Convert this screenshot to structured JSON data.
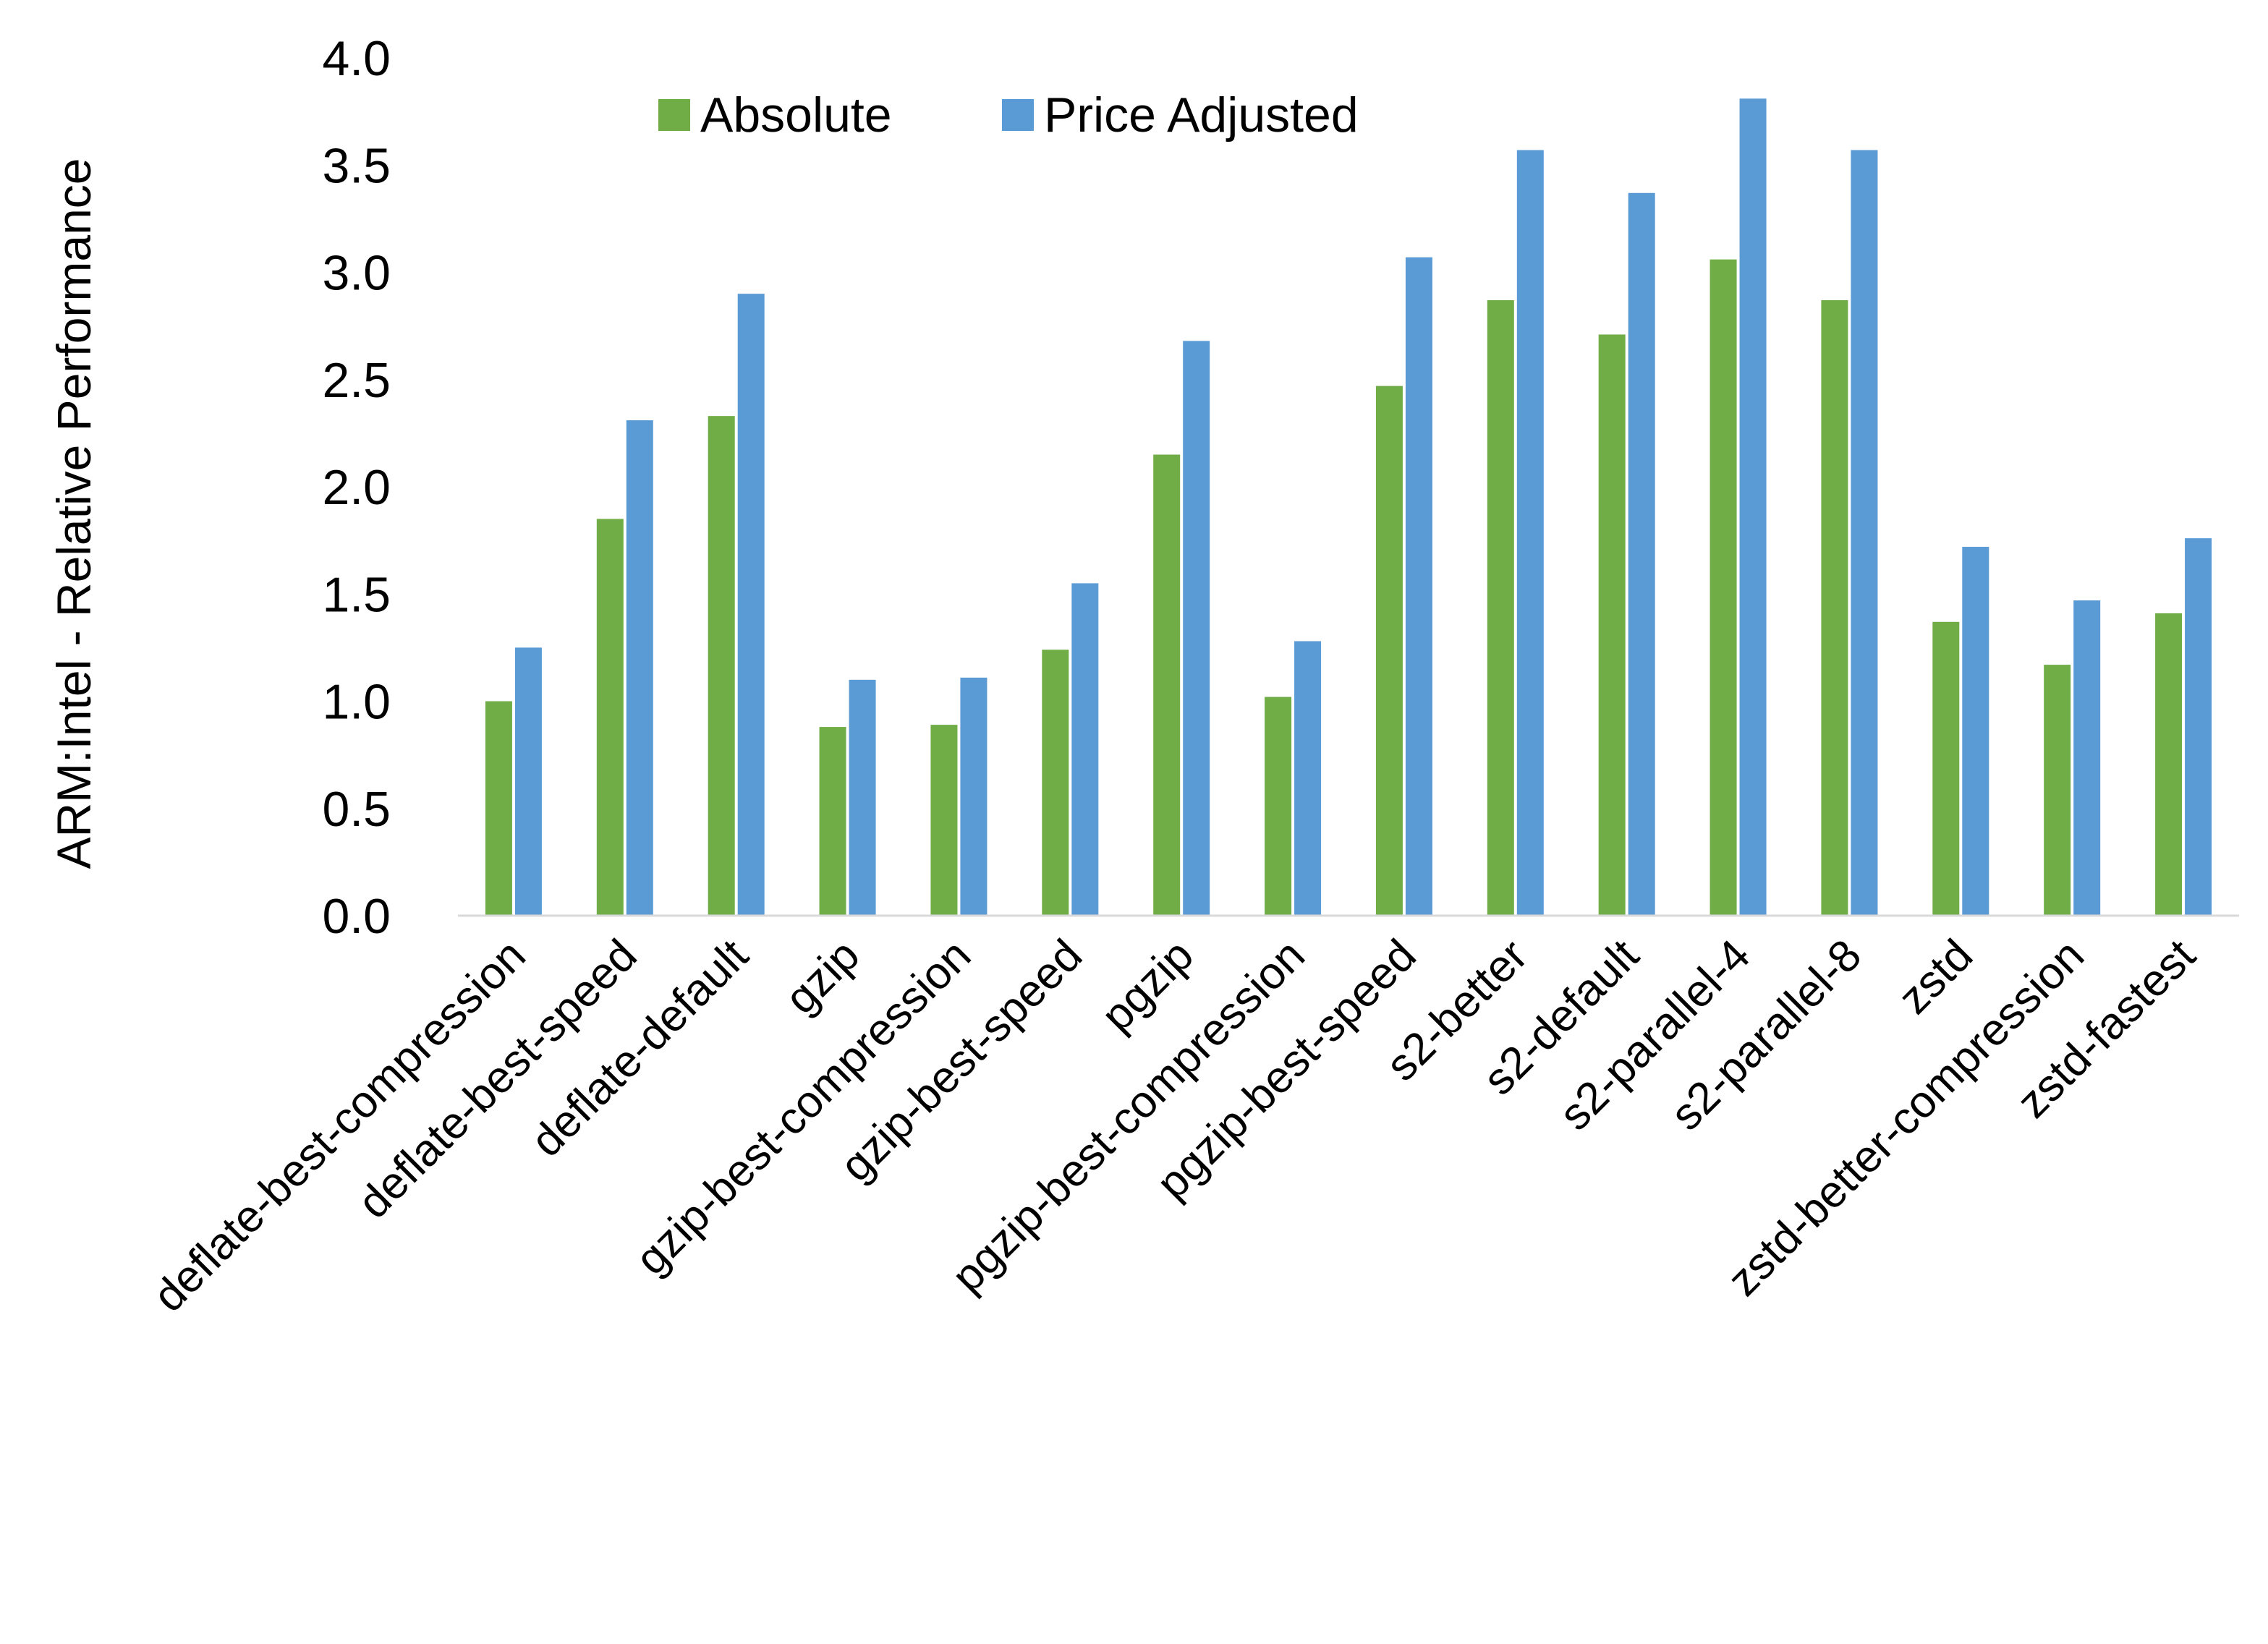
{
  "chart_data": {
    "type": "bar",
    "title": "",
    "xlabel": "",
    "ylabel": "ARM:Intel - Relative Performance",
    "ylim": [
      0,
      4
    ],
    "yticks": [
      "0.0",
      "0.5",
      "1.0",
      "1.5",
      "2.0",
      "2.5",
      "3.0",
      "3.5",
      "4.0"
    ],
    "grid": false,
    "legend_position": "top",
    "categories": [
      "deflate-best-compression",
      "deflate-best-speed",
      "deflate-default",
      "gzip",
      "gzip-best-compression",
      "gzip-best-speed",
      "pgzip",
      "pgzip-best-compression",
      "pgzip-best-speed",
      "s2-better",
      "s2-default",
      "s2-parallel-4",
      "s2-parallel-8",
      "zstd",
      "zstd-better-compression",
      "zstd-fastest"
    ],
    "series": [
      {
        "name": "Absolute",
        "color": "#70ad47",
        "values": [
          1.0,
          1.85,
          2.33,
          0.88,
          0.89,
          1.24,
          2.15,
          1.02,
          2.47,
          2.87,
          2.71,
          3.06,
          2.87,
          1.37,
          1.17,
          1.41
        ]
      },
      {
        "name": "Price Adjusted",
        "color": "#5b9bd5",
        "values": [
          1.25,
          2.31,
          2.9,
          1.1,
          1.11,
          1.55,
          2.68,
          1.28,
          3.07,
          3.57,
          3.37,
          3.81,
          3.57,
          1.72,
          1.47,
          1.76
        ]
      }
    ]
  }
}
